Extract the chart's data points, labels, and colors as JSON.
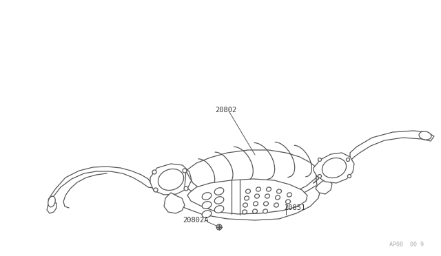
{
  "bg_color": "#ffffff",
  "line_color": "#555555",
  "label_color": "#333333",
  "watermark_color": "#aaaaaa",
  "watermark": "AP08  00 9",
  "fig_width": 6.4,
  "fig_height": 3.72,
  "dpi": 100
}
